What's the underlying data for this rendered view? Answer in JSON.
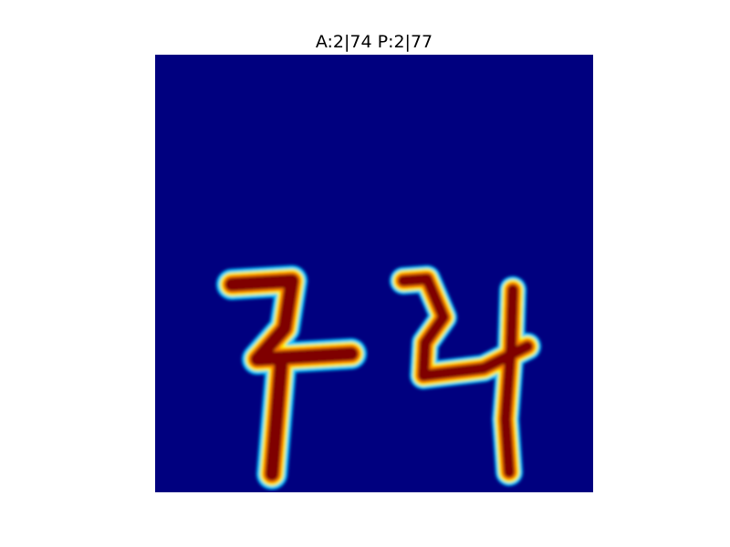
{
  "title": "A:2|74 P:2|77",
  "heatmap": {
    "colormap": "jet",
    "background_color": "#00007f",
    "stroke_colors": {
      "high": "#7f0000",
      "mid": "#ff7f00",
      "low": "#00c8ff"
    },
    "digits": [
      "7",
      "4"
    ]
  }
}
